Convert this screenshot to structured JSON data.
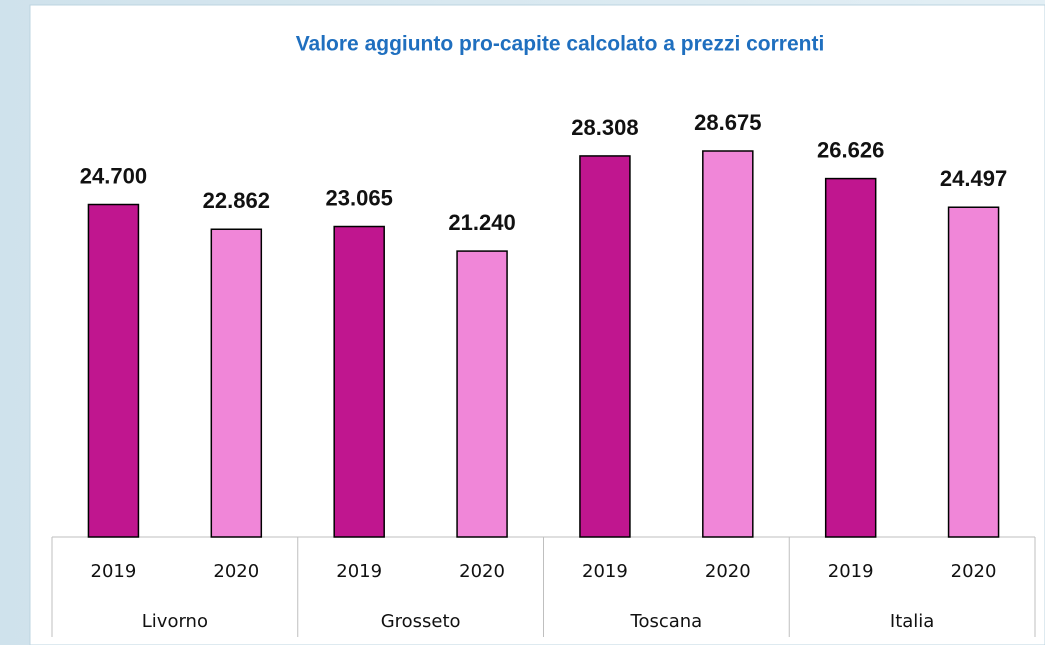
{
  "chart_data": {
    "type": "bar",
    "title": "Valore aggiunto pro-capite calcolato a prezzi correnti",
    "categories": [
      "Livorno",
      "Grosseto",
      "Toscana",
      "Italia"
    ],
    "series": [
      {
        "name": "2019",
        "color": "#c0168f",
        "values": [
          24700,
          23065,
          28308,
          26626
        ],
        "value_labels": [
          "24.700",
          "23.065",
          "28.308",
          "26.626"
        ]
      },
      {
        "name": "2020",
        "color": "#f086d8",
        "values": [
          22862,
          21240,
          28675,
          24497
        ],
        "value_labels": [
          "22.862",
          "21.240",
          "28.675",
          "24.497"
        ]
      }
    ]
  }
}
